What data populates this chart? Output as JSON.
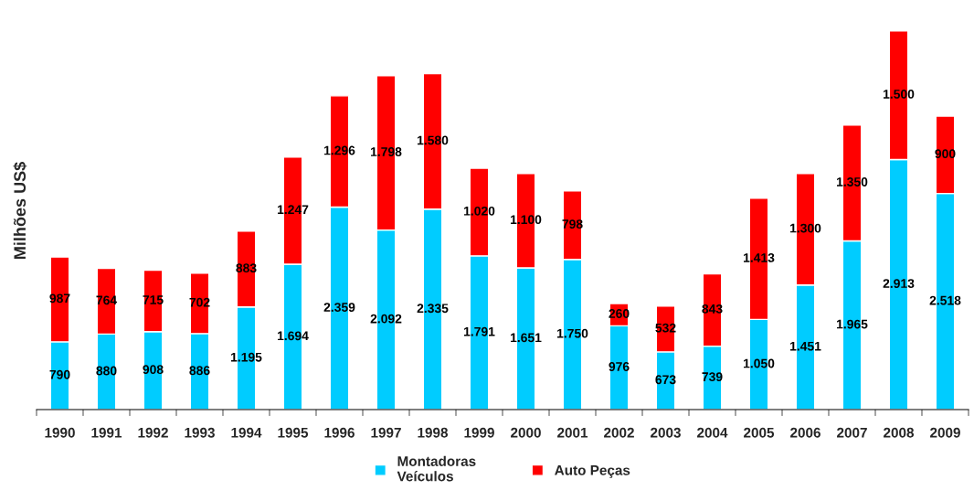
{
  "chart_data": {
    "type": "bar",
    "stacked": true,
    "ylabel": "Milhões US$",
    "legend": "bottom",
    "grid": false,
    "tick_labels": "x",
    "categories": [
      "1990",
      "1991",
      "1992",
      "1993",
      "1994",
      "1995",
      "1996",
      "1997",
      "1998",
      "1999",
      "2000",
      "2001",
      "2002",
      "2003",
      "2004",
      "2005",
      "2006",
      "2007",
      "2008",
      "2009"
    ],
    "series": [
      {
        "name": "Montadoras\nVeículos",
        "color": "#00ccff",
        "values": [
          790,
          880,
          908,
          886,
          1195,
          1694,
          2359,
          2092,
          2335,
          1791,
          1651,
          1750,
          976,
          673,
          739,
          1050,
          1451,
          1965,
          2913,
          2518
        ],
        "value_labels": [
          "790",
          "880",
          "908",
          "886",
          "1.195",
          "1.694",
          "2.359",
          "2.092",
          "2.335",
          "1.791",
          "1.651",
          "1.750",
          "976",
          "673",
          "739",
          "1.050",
          "1.451",
          "1.965",
          "2.913",
          "2.518"
        ]
      },
      {
        "name": "Auto Peças",
        "color": "#ff0000",
        "values": [
          987,
          764,
          715,
          702,
          883,
          1247,
          1296,
          1798,
          1580,
          1020,
          1100,
          798,
          260,
          532,
          843,
          1413,
          1300,
          1350,
          1500,
          900
        ],
        "value_labels": [
          "987",
          "764",
          "715",
          "702",
          "883",
          "1.247",
          "1.296",
          "1.798",
          "1.580",
          "1.020",
          "1.100",
          "798",
          "260",
          "532",
          "843",
          "1.413",
          "1.300",
          "1.350",
          "1.500",
          "900"
        ]
      }
    ]
  }
}
